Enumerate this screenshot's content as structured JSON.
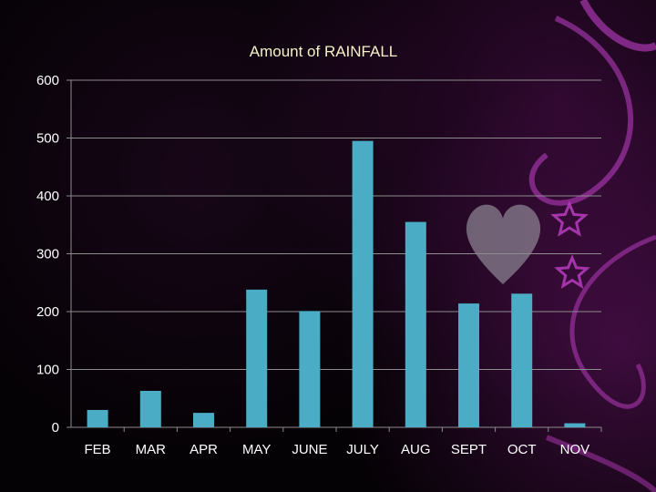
{
  "colors": {
    "bar": "#4bacc6",
    "grid": "#8c8c8c",
    "title": "#f5f0c8",
    "decoration": "#c040c8"
  },
  "decoration": {
    "icons": [
      "heart-icon",
      "star-icon",
      "swirl-icon"
    ]
  },
  "chart_data": {
    "type": "bar",
    "title": "Amount of RAINFALL",
    "xlabel": "",
    "ylabel": "",
    "categories": [
      "FEB",
      "MAR",
      "APR",
      "MAY",
      "JUNE",
      "JULY",
      "AUG",
      "SEPT",
      "OCT",
      "NOV"
    ],
    "values": [
      30,
      63,
      25,
      238,
      201,
      495,
      355,
      214,
      231,
      7
    ],
    "ylim": [
      0,
      600
    ],
    "yticks": [
      0,
      100,
      200,
      300,
      400,
      500,
      600
    ],
    "grid": true,
    "legend": "none"
  }
}
